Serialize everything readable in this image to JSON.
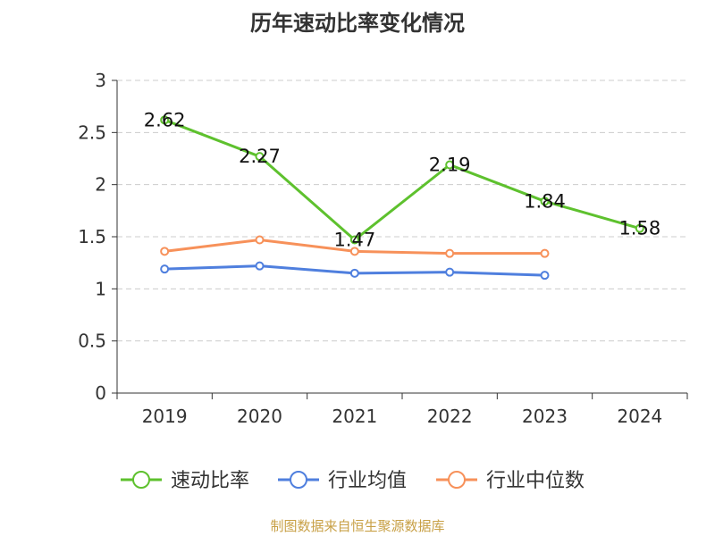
{
  "chart_data": {
    "type": "line",
    "title": "历年速动比率变化情况",
    "categories": [
      "2019",
      "2020",
      "2021",
      "2022",
      "2023",
      "2024"
    ],
    "ylim": [
      0,
      3
    ],
    "yticks": [
      0,
      0.5,
      1,
      1.5,
      2,
      2.5,
      3
    ],
    "ytick_labels": [
      "0",
      "0.5",
      "1",
      "1.5",
      "2",
      "2.5",
      "3"
    ],
    "grid": true,
    "legend_position": "bottom",
    "series": [
      {
        "name": "速动比率",
        "color": "#5ec12e",
        "values": [
          2.62,
          2.27,
          1.47,
          2.19,
          1.84,
          1.58
        ],
        "labels": [
          "2.62",
          "2.27",
          "1.47",
          "2.19",
          "1.84",
          "1.58"
        ],
        "show_labels": true
      },
      {
        "name": "行业均值",
        "color": "#4f7fde",
        "values": [
          1.19,
          1.22,
          1.15,
          1.16,
          1.13,
          null
        ],
        "show_labels": false
      },
      {
        "name": "行业中位数",
        "color": "#f7915a",
        "values": [
          1.36,
          1.47,
          1.36,
          1.34,
          1.34,
          null
        ],
        "show_labels": false
      }
    ]
  },
  "source": "制图数据来自恒生聚源数据库"
}
